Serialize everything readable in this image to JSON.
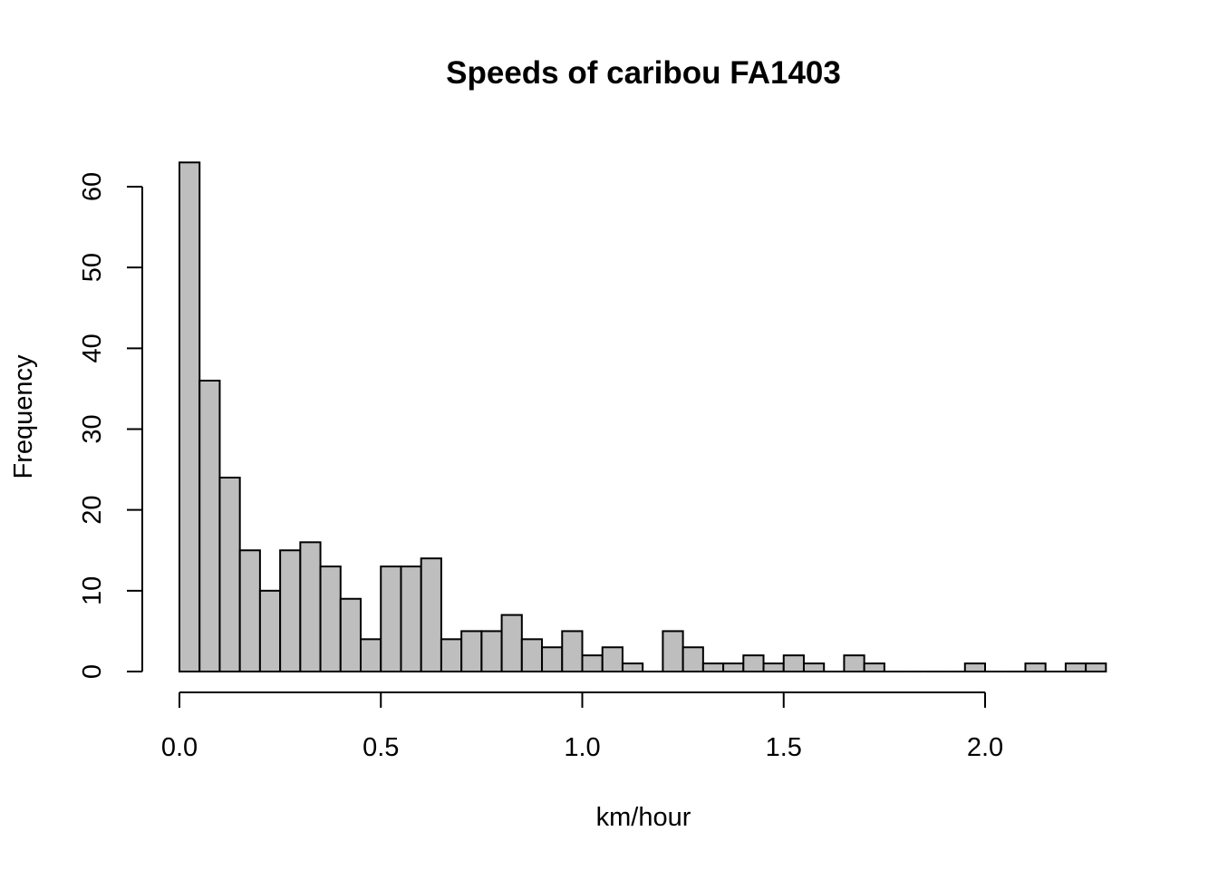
{
  "chart_data": {
    "type": "bar",
    "title": "Speeds of caribou FA1403",
    "xlabel": "km/hour",
    "ylabel": "Frequency",
    "bin_width": 0.05,
    "bin_start": 0.0,
    "values": [
      63,
      36,
      24,
      15,
      10,
      15,
      16,
      13,
      9,
      4,
      13,
      13,
      14,
      4,
      5,
      5,
      7,
      4,
      3,
      5,
      2,
      3,
      1,
      0,
      5,
      3,
      1,
      1,
      2,
      1,
      2,
      1,
      0,
      2,
      1,
      0,
      0,
      0,
      0,
      1,
      0,
      0,
      1,
      0,
      1,
      1
    ],
    "xlim": [
      0,
      2.0
    ],
    "ylim": [
      0,
      60
    ],
    "x_ticks": [
      "0.0",
      "0.5",
      "1.0",
      "1.5",
      "2.0"
    ],
    "y_ticks": [
      "0",
      "10",
      "20",
      "30",
      "40",
      "50",
      "60"
    ],
    "bar_color": "#bebebe",
    "grid": false,
    "legend": "none"
  }
}
